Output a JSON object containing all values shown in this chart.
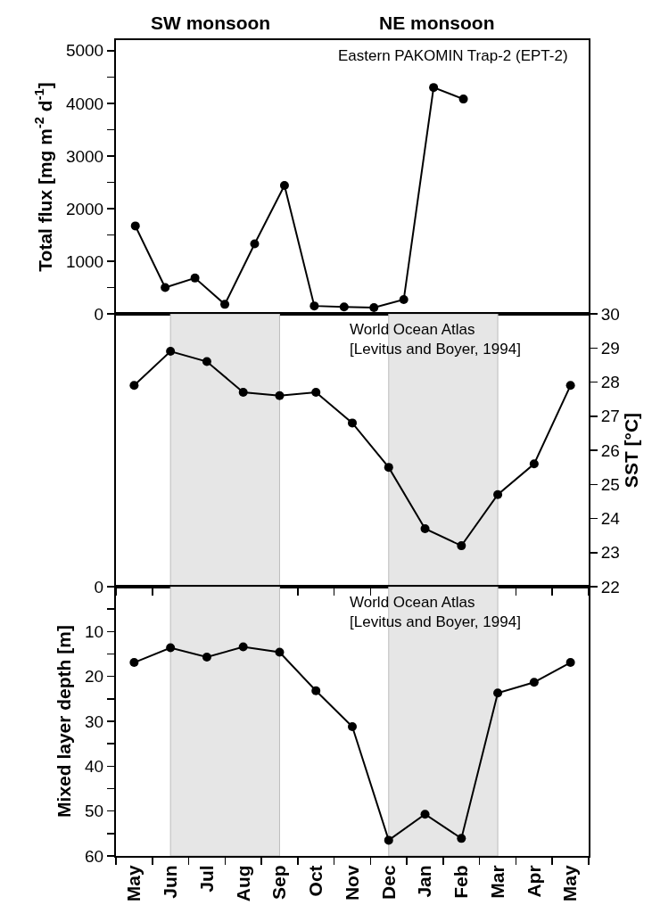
{
  "chart_data": [
    {
      "type": "line",
      "ylabel": "Total flux [mg m$^{-2}$ d$^{-1}$]",
      "annotations": [
        "SW monsoon",
        "NE monsoon",
        "Eastern PAKOMIN Trap-2 (EPT-2)"
      ],
      "categories": [
        null,
        null,
        null,
        null,
        null,
        null,
        null,
        null,
        null,
        null,
        null,
        null
      ],
      "series": [
        {
          "color": "#000000",
          "values": [
            1670,
            500,
            680,
            180,
            1330,
            2440,
            150,
            130,
            120,
            270,
            4300,
            4080
          ]
        }
      ],
      "ylim": [
        0,
        5200
      ],
      "yticks": [
        0,
        {
          "value": 500,
          "label": null
        },
        1000,
        {
          "value": 1500,
          "label": null
        },
        2000,
        {
          "value": 2500,
          "label": null
        },
        3000,
        {
          "value": 3500,
          "label": null
        },
        4000,
        {
          "value": 4500,
          "label": null
        },
        5000
      ],
      "tick_labels": "y",
      "grid": false,
      "marker": "circle",
      "line_style": "solid"
    },
    {
      "type": "line",
      "y2label": "SST [°C]",
      "annotations": [
        "World Ocean Atlas\n[Levitus and Boyer, 1994]"
      ],
      "categories": [
        "May",
        "Jun",
        "Jul",
        "Aug",
        "Sep",
        "Oct",
        "Nov",
        "Dec",
        "Jan",
        "Feb",
        "Mar",
        "Apr",
        "May"
      ],
      "series": [
        {
          "color": "#000000",
          "axis": "y2",
          "values": [
            27.9,
            28.9,
            28.6,
            27.7,
            27.6,
            27.7,
            26.8,
            25.5,
            23.7,
            23.2,
            24.7,
            25.6,
            27.9
          ]
        }
      ],
      "y2lim": [
        22,
        30
      ],
      "y2ticks": [
        22,
        23,
        24,
        25,
        26,
        27,
        28,
        29,
        30
      ],
      "bands": [
        {
          "axis": "x",
          "from": "Jun",
          "to": "Sep",
          "color": "#e6e6e6"
        },
        {
          "axis": "x",
          "from": "Dec",
          "to": "Mar",
          "color": "#e6e6e6"
        }
      ],
      "tick_labels": "y",
      "grid": false,
      "marker": "circle",
      "line_style": "solid"
    },
    {
      "type": "line",
      "ylabel": "Mixed layer depth [m]",
      "annotations": [
        "World Ocean Atlas\n[Levitus and Boyer, 1994]"
      ],
      "categories": [
        "May",
        "Jun",
        "Jul",
        "Aug",
        "Sep",
        "Oct",
        "Nov",
        "Dec",
        "Jan",
        "Feb",
        "Mar",
        "Apr",
        "May"
      ],
      "series": [
        {
          "color": "#000000",
          "values": [
            16.9,
            13.6,
            15.7,
            13.4,
            14.6,
            23.2,
            31.2,
            56.5,
            50.7,
            56.1,
            23.7,
            21.3,
            16.9
          ]
        }
      ],
      "ylim": [
        60,
        0
      ],
      "yticks": [
        0,
        {
          "value": 5,
          "label": null
        },
        10,
        {
          "value": 15,
          "label": null
        },
        20,
        {
          "value": 25,
          "label": null
        },
        30,
        {
          "value": 35,
          "label": null
        },
        40,
        {
          "value": 45,
          "label": null
        },
        50,
        {
          "value": 55,
          "label": null
        },
        60
      ],
      "bands": [
        {
          "axis": "x",
          "from": "Jun",
          "to": "Sep",
          "color": "#e6e6e6"
        },
        {
          "axis": "x",
          "from": "Dec",
          "to": "Mar",
          "color": "#e6e6e6"
        }
      ],
      "grid": false,
      "marker": "circle",
      "line_style": "solid"
    }
  ]
}
